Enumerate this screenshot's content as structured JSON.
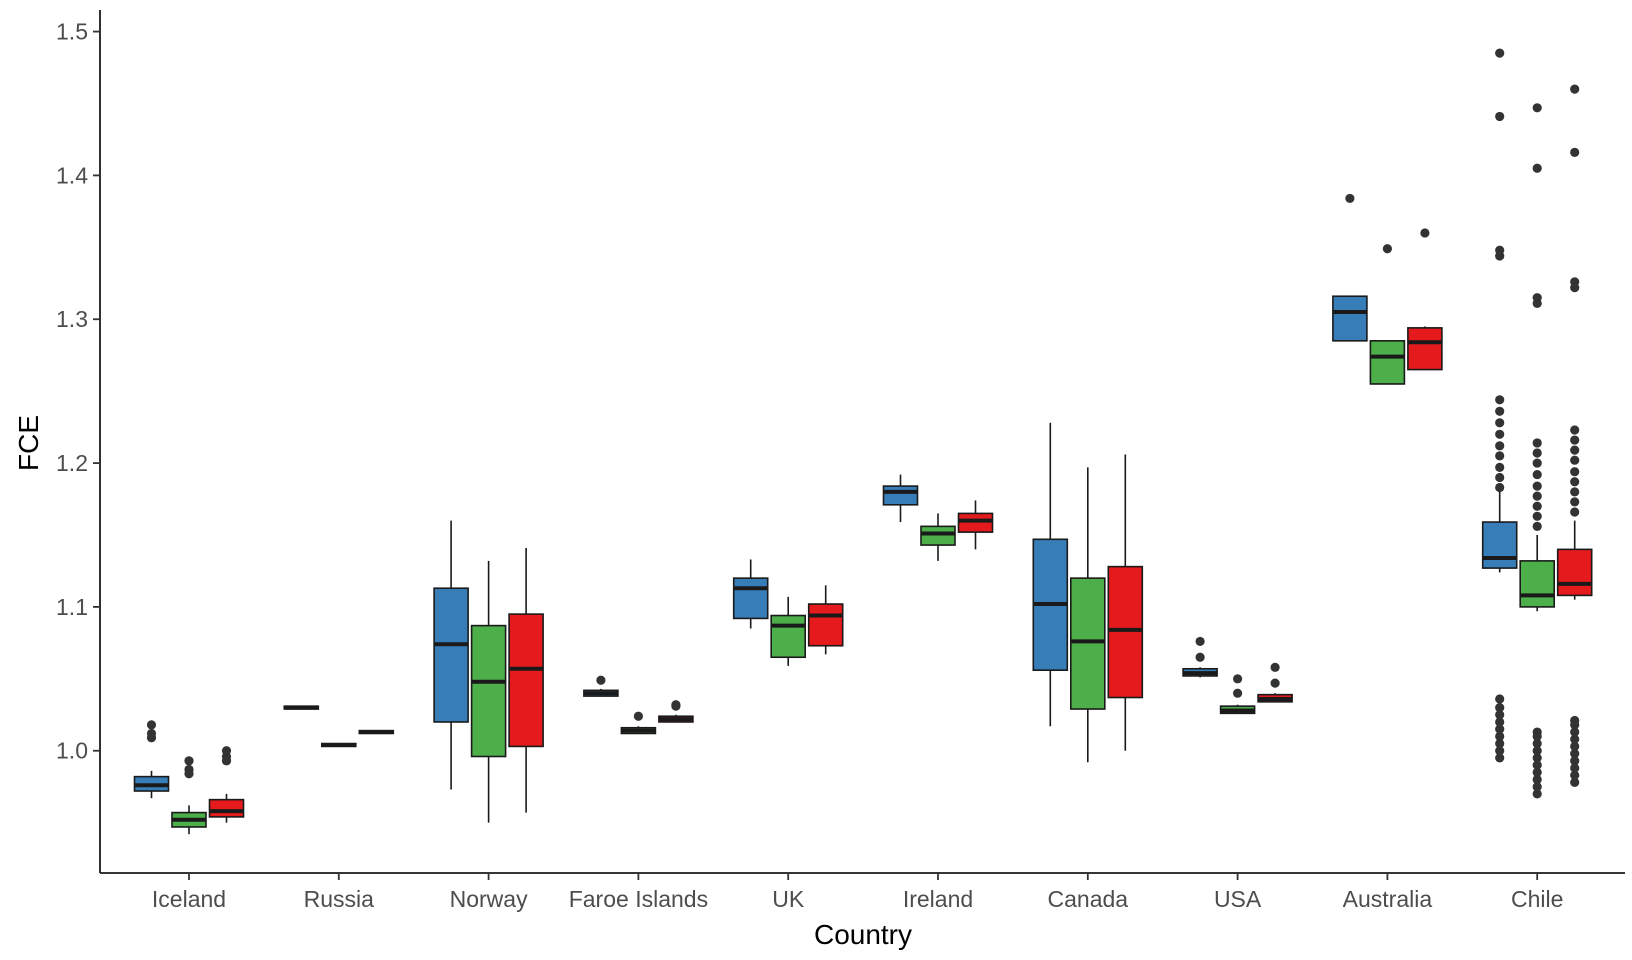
{
  "chart_data": {
    "type": "boxplot",
    "title": "",
    "xlabel": "Country",
    "ylabel": "FCE",
    "ylim": [
      0.915,
      1.515
    ],
    "yticks": [
      1.0,
      1.1,
      1.2,
      1.3,
      1.4,
      1.5
    ],
    "ytick_labels": [
      "1.0",
      "1.1",
      "1.2",
      "1.3",
      "1.4",
      "1.5"
    ],
    "grid": false,
    "legend": "none",
    "series_colors": [
      "#377EB8",
      "#4DAF4A",
      "#E41A1C"
    ],
    "categories": [
      "Iceland",
      "Russia",
      "Norway",
      "Faroe Islands",
      "UK",
      "Ireland",
      "Canada",
      "USA",
      "Australia",
      "Chile"
    ],
    "boxes": [
      [
        {
          "whisker_low": 0.967,
          "q1": 0.972,
          "median": 0.976,
          "q3": 0.982,
          "whisker_high": 0.986,
          "outliers": [
            1.009,
            1.012,
            1.018
          ]
        },
        {
          "whisker_low": 0.942,
          "q1": 0.947,
          "median": 0.952,
          "q3": 0.957,
          "whisker_high": 0.962,
          "outliers": [
            0.984,
            0.987,
            0.993
          ]
        },
        {
          "whisker_low": 0.95,
          "q1": 0.954,
          "median": 0.958,
          "q3": 0.966,
          "whisker_high": 0.97,
          "outliers": [
            0.993,
            0.996,
            1.0
          ]
        }
      ],
      [
        {
          "whisker_low": 1.029,
          "q1": 1.029,
          "median": 1.03,
          "q3": 1.031,
          "whisker_high": 1.031,
          "outliers": []
        },
        {
          "whisker_low": 1.003,
          "q1": 1.003,
          "median": 1.004,
          "q3": 1.005,
          "whisker_high": 1.005,
          "outliers": []
        },
        {
          "whisker_low": 1.012,
          "q1": 1.012,
          "median": 1.013,
          "q3": 1.014,
          "whisker_high": 1.014,
          "outliers": []
        }
      ],
      [
        {
          "whisker_low": 0.973,
          "q1": 1.02,
          "median": 1.074,
          "q3": 1.113,
          "whisker_high": 1.16,
          "outliers": []
        },
        {
          "whisker_low": 0.95,
          "q1": 0.996,
          "median": 1.048,
          "q3": 1.087,
          "whisker_high": 1.132,
          "outliers": []
        },
        {
          "whisker_low": 0.957,
          "q1": 1.003,
          "median": 1.057,
          "q3": 1.095,
          "whisker_high": 1.141,
          "outliers": []
        }
      ],
      [
        {
          "whisker_low": 1.038,
          "q1": 1.038,
          "median": 1.04,
          "q3": 1.042,
          "whisker_high": 1.043,
          "outliers": [
            1.049
          ]
        },
        {
          "whisker_low": 1.012,
          "q1": 1.012,
          "median": 1.014,
          "q3": 1.016,
          "whisker_high": 1.017,
          "outliers": [
            1.024
          ]
        },
        {
          "whisker_low": 1.02,
          "q1": 1.02,
          "median": 1.022,
          "q3": 1.024,
          "whisker_high": 1.025,
          "outliers": [
            1.031,
            1.032
          ]
        }
      ],
      [
        {
          "whisker_low": 1.085,
          "q1": 1.092,
          "median": 1.113,
          "q3": 1.12,
          "whisker_high": 1.133,
          "outliers": []
        },
        {
          "whisker_low": 1.059,
          "q1": 1.065,
          "median": 1.087,
          "q3": 1.094,
          "whisker_high": 1.107,
          "outliers": []
        },
        {
          "whisker_low": 1.067,
          "q1": 1.073,
          "median": 1.094,
          "q3": 1.102,
          "whisker_high": 1.115,
          "outliers": []
        }
      ],
      [
        {
          "whisker_low": 1.159,
          "q1": 1.171,
          "median": 1.18,
          "q3": 1.184,
          "whisker_high": 1.192,
          "outliers": []
        },
        {
          "whisker_low": 1.132,
          "q1": 1.143,
          "median": 1.151,
          "q3": 1.156,
          "whisker_high": 1.165,
          "outliers": []
        },
        {
          "whisker_low": 1.14,
          "q1": 1.152,
          "median": 1.16,
          "q3": 1.165,
          "whisker_high": 1.174,
          "outliers": []
        }
      ],
      [
        {
          "whisker_low": 1.017,
          "q1": 1.056,
          "median": 1.102,
          "q3": 1.147,
          "whisker_high": 1.228,
          "outliers": []
        },
        {
          "whisker_low": 0.992,
          "q1": 1.029,
          "median": 1.076,
          "q3": 1.12,
          "whisker_high": 1.197,
          "outliers": []
        },
        {
          "whisker_low": 1.0,
          "q1": 1.037,
          "median": 1.084,
          "q3": 1.128,
          "whisker_high": 1.206,
          "outliers": []
        }
      ],
      [
        {
          "whisker_low": 1.051,
          "q1": 1.052,
          "median": 1.054,
          "q3": 1.057,
          "whisker_high": 1.058,
          "outliers": [
            1.065,
            1.076
          ]
        },
        {
          "whisker_low": 1.026,
          "q1": 1.026,
          "median": 1.028,
          "q3": 1.031,
          "whisker_high": 1.032,
          "outliers": [
            1.04,
            1.05
          ]
        },
        {
          "whisker_low": 1.034,
          "q1": 1.034,
          "median": 1.036,
          "q3": 1.039,
          "whisker_high": 1.04,
          "outliers": [
            1.047,
            1.058
          ]
        }
      ],
      [
        {
          "whisker_low": 1.285,
          "q1": 1.285,
          "median": 1.305,
          "q3": 1.316,
          "whisker_high": 1.316,
          "outliers": [
            1.384
          ]
        },
        {
          "whisker_low": 1.255,
          "q1": 1.255,
          "median": 1.274,
          "q3": 1.285,
          "whisker_high": 1.285,
          "outliers": [
            1.349
          ]
        },
        {
          "whisker_low": 1.265,
          "q1": 1.265,
          "median": 1.284,
          "q3": 1.294,
          "whisker_high": 1.295,
          "outliers": [
            1.36
          ]
        }
      ],
      [
        {
          "whisker_low": 1.124,
          "q1": 1.127,
          "median": 1.134,
          "q3": 1.159,
          "whisker_high": 1.182,
          "outliers": [
            0.995,
            1.0,
            1.005,
            1.01,
            1.015,
            1.02,
            1.025,
            1.03,
            1.036,
            1.183,
            1.19,
            1.197,
            1.205,
            1.212,
            1.22,
            1.228,
            1.236,
            1.244,
            1.344,
            1.348,
            1.441,
            1.485
          ]
        },
        {
          "whisker_low": 1.097,
          "q1": 1.1,
          "median": 1.108,
          "q3": 1.132,
          "whisker_high": 1.15,
          "outliers": [
            0.97,
            0.975,
            0.98,
            0.985,
            0.99,
            0.995,
            1.0,
            1.005,
            1.01,
            1.013,
            1.156,
            1.163,
            1.17,
            1.177,
            1.184,
            1.192,
            1.2,
            1.207,
            1.214,
            1.311,
            1.315,
            1.405,
            1.447
          ]
        },
        {
          "whisker_low": 1.105,
          "q1": 1.108,
          "median": 1.116,
          "q3": 1.14,
          "whisker_high": 1.16,
          "outliers": [
            0.978,
            0.983,
            0.988,
            0.993,
            0.998,
            1.003,
            1.008,
            1.013,
            1.018,
            1.021,
            1.166,
            1.173,
            1.18,
            1.187,
            1.194,
            1.202,
            1.209,
            1.216,
            1.223,
            1.322,
            1.326,
            1.416,
            1.46
          ]
        }
      ]
    ]
  }
}
